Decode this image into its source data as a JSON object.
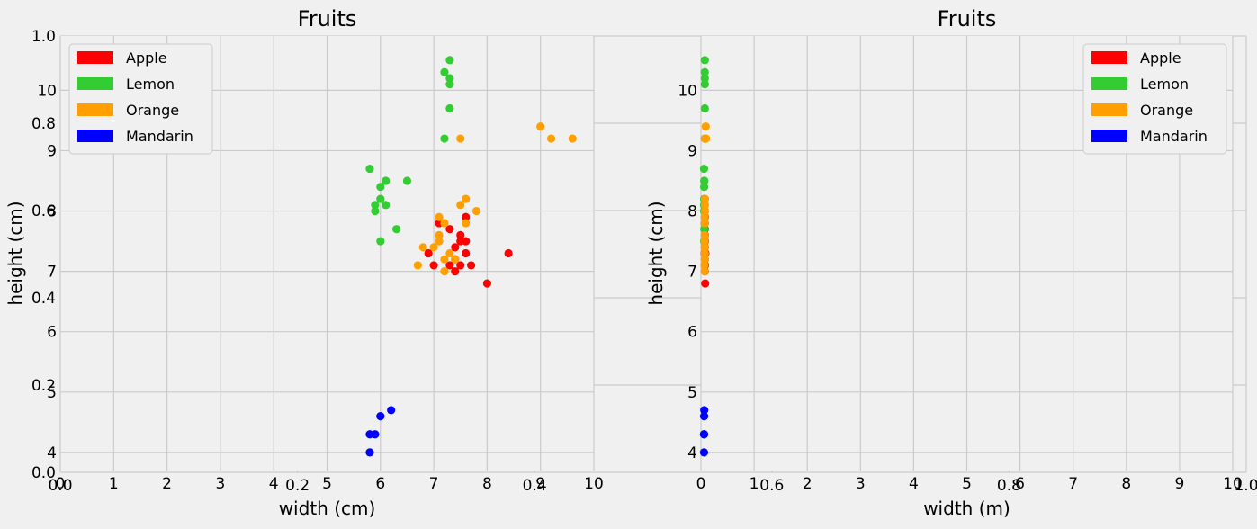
{
  "chart_data": [
    {
      "type": "scatter",
      "title": "Fruits",
      "xlabel": "width (cm)",
      "ylabel": "height (cm)",
      "xlim": [
        0,
        10
      ],
      "ylim": [
        3.7,
        10.9
      ],
      "xticks": [
        "0",
        "1",
        "2",
        "3",
        "4",
        "5",
        "6",
        "7",
        "8",
        "9",
        "10"
      ],
      "yticks": [
        "4",
        "5",
        "6",
        "7",
        "8",
        "9",
        "10"
      ],
      "grid": true,
      "legend": "top-left",
      "series": [
        {
          "name": "Apple",
          "color": "#ff0000",
          "points": [
            [
              7.1,
              7.8
            ],
            [
              7.3,
              7.7
            ],
            [
              7.6,
              7.9
            ],
            [
              7.5,
              7.6
            ],
            [
              7.6,
              7.5
            ],
            [
              7.5,
              7.5
            ],
            [
              7.4,
              7.4
            ],
            [
              7.6,
              7.3
            ],
            [
              6.9,
              7.3
            ],
            [
              7.4,
              7.2
            ],
            [
              7.3,
              7.1
            ],
            [
              7.0,
              7.1
            ],
            [
              7.5,
              7.1
            ],
            [
              7.7,
              7.1
            ],
            [
              7.4,
              7.0
            ],
            [
              8.0,
              6.8
            ],
            [
              8.4,
              7.3
            ]
          ]
        },
        {
          "name": "Lemon",
          "color": "#33cc33",
          "points": [
            [
              7.3,
              10.5
            ],
            [
              7.2,
              10.3
            ],
            [
              7.3,
              10.2
            ],
            [
              7.3,
              10.1
            ],
            [
              7.3,
              9.7
            ],
            [
              7.2,
              9.2
            ],
            [
              5.8,
              8.7
            ],
            [
              6.1,
              8.5
            ],
            [
              6.5,
              8.5
            ],
            [
              6.0,
              8.4
            ],
            [
              6.0,
              8.2
            ],
            [
              5.9,
              8.1
            ],
            [
              6.1,
              8.1
            ],
            [
              5.9,
              8.0
            ],
            [
              6.3,
              7.7
            ],
            [
              6.0,
              7.5
            ]
          ]
        },
        {
          "name": "Orange",
          "color": "#ff9f00",
          "points": [
            [
              9.0,
              9.4
            ],
            [
              9.2,
              9.2
            ],
            [
              9.6,
              9.2
            ],
            [
              7.5,
              9.2
            ],
            [
              7.6,
              8.2
            ],
            [
              7.5,
              8.1
            ],
            [
              7.8,
              8.0
            ],
            [
              7.1,
              7.9
            ],
            [
              7.2,
              7.8
            ],
            [
              7.6,
              7.8
            ],
            [
              7.1,
              7.6
            ],
            [
              7.1,
              7.5
            ],
            [
              7.0,
              7.4
            ],
            [
              6.8,
              7.4
            ],
            [
              7.3,
              7.3
            ],
            [
              7.2,
              7.2
            ],
            [
              7.4,
              7.2
            ],
            [
              6.7,
              7.1
            ],
            [
              7.2,
              7.0
            ]
          ]
        },
        {
          "name": "Mandarin",
          "color": "#0000ff",
          "points": [
            [
              6.2,
              4.7
            ],
            [
              6.0,
              4.6
            ],
            [
              5.8,
              4.3
            ],
            [
              5.9,
              4.3
            ],
            [
              5.8,
              4.0
            ]
          ]
        }
      ]
    },
    {
      "type": "scatter",
      "title": "Fruits",
      "xlabel": "width (m)",
      "ylabel": "height (cm)",
      "xlim": [
        0,
        10
      ],
      "ylim": [
        3.7,
        10.9
      ],
      "xticks": [
        "0",
        "1",
        "2",
        "3",
        "4",
        "5",
        "6",
        "7",
        "8",
        "9",
        "10"
      ],
      "yticks": [
        "4",
        "5",
        "6",
        "7",
        "8",
        "9",
        "10"
      ],
      "grid": true,
      "legend": "top-right",
      "series": [
        {
          "name": "Apple",
          "color": "#ff0000",
          "points": [
            [
              0.071,
              7.8
            ],
            [
              0.073,
              7.7
            ],
            [
              0.076,
              7.9
            ],
            [
              0.075,
              7.6
            ],
            [
              0.076,
              7.5
            ],
            [
              0.075,
              7.5
            ],
            [
              0.074,
              7.4
            ],
            [
              0.076,
              7.3
            ],
            [
              0.069,
              7.3
            ],
            [
              0.074,
              7.2
            ],
            [
              0.073,
              7.1
            ],
            [
              0.07,
              7.1
            ],
            [
              0.075,
              7.1
            ],
            [
              0.077,
              7.1
            ],
            [
              0.074,
              7.0
            ],
            [
              0.08,
              6.8
            ],
            [
              0.084,
              7.3
            ]
          ]
        },
        {
          "name": "Lemon",
          "color": "#33cc33",
          "points": [
            [
              0.073,
              10.5
            ],
            [
              0.072,
              10.3
            ],
            [
              0.073,
              10.2
            ],
            [
              0.073,
              10.1
            ],
            [
              0.073,
              9.7
            ],
            [
              0.072,
              9.2
            ],
            [
              0.058,
              8.7
            ],
            [
              0.061,
              8.5
            ],
            [
              0.065,
              8.5
            ],
            [
              0.06,
              8.4
            ],
            [
              0.06,
              8.2
            ],
            [
              0.059,
              8.1
            ],
            [
              0.061,
              8.1
            ],
            [
              0.059,
              8.0
            ],
            [
              0.063,
              7.7
            ],
            [
              0.06,
              7.5
            ]
          ]
        },
        {
          "name": "Orange",
          "color": "#ff9f00",
          "points": [
            [
              0.09,
              9.4
            ],
            [
              0.092,
              9.2
            ],
            [
              0.096,
              9.2
            ],
            [
              0.075,
              9.2
            ],
            [
              0.076,
              8.2
            ],
            [
              0.075,
              8.1
            ],
            [
              0.078,
              8.0
            ],
            [
              0.071,
              7.9
            ],
            [
              0.072,
              7.8
            ],
            [
              0.076,
              7.8
            ],
            [
              0.071,
              7.6
            ],
            [
              0.071,
              7.5
            ],
            [
              0.07,
              7.4
            ],
            [
              0.068,
              7.4
            ],
            [
              0.073,
              7.3
            ],
            [
              0.072,
              7.2
            ],
            [
              0.074,
              7.2
            ],
            [
              0.067,
              7.1
            ],
            [
              0.072,
              7.0
            ]
          ]
        },
        {
          "name": "Mandarin",
          "color": "#0000ff",
          "points": [
            [
              0.062,
              4.7
            ],
            [
              0.06,
              4.6
            ],
            [
              0.058,
              4.3
            ],
            [
              0.059,
              4.3
            ],
            [
              0.058,
              4.0
            ]
          ]
        }
      ]
    },
    {
      "type": "scatter",
      "xlim": [
        0,
        1
      ],
      "ylim": [
        0,
        1
      ],
      "xticks": [
        "0.0",
        "0.2",
        "0.4",
        "0.6",
        "0.8",
        "1.0"
      ],
      "yticks": [
        "0.0",
        "0.2",
        "0.4",
        "0.6",
        "0.8",
        "1.0"
      ],
      "grid": true,
      "series": []
    }
  ]
}
